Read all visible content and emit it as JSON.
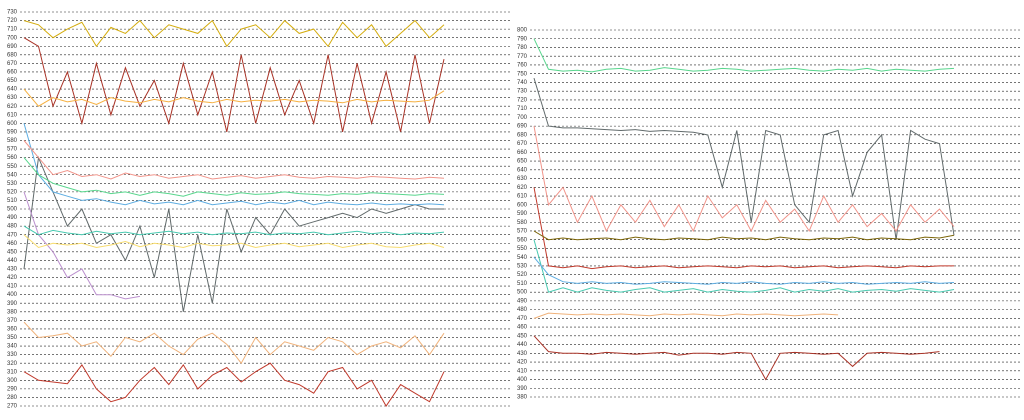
{
  "chart_data": [
    {
      "type": "line",
      "grid": true,
      "categories": [
        null,
        null,
        null,
        null,
        null,
        null,
        null,
        null,
        null,
        null,
        null,
        null,
        null,
        null,
        null,
        null,
        null,
        null,
        null,
        null,
        null,
        null,
        null,
        null,
        null,
        null,
        null,
        null,
        null,
        null
      ],
      "ylim": [
        270,
        730
      ],
      "yticks": [
        270,
        280,
        290,
        300,
        310,
        320,
        330,
        340,
        350,
        360,
        370,
        380,
        390,
        400,
        410,
        420,
        430,
        440,
        450,
        460,
        470,
        480,
        490,
        500,
        510,
        520,
        530,
        540,
        550,
        560,
        570,
        580,
        590,
        600,
        610,
        620,
        630,
        640,
        650,
        660,
        670,
        680,
        690,
        700,
        710,
        720,
        730
      ],
      "series": [
        {
          "color": "#c0392b",
          "values": [
            310,
            300,
            298,
            296,
            318,
            290,
            275,
            280,
            300,
            315,
            295,
            318,
            290,
            306,
            315,
            298,
            310,
            320,
            300,
            295,
            285,
            310,
            315,
            290,
            300,
            270,
            295,
            285,
            275,
            310
          ]
        },
        {
          "color": "#f0b27a",
          "values": [
            368,
            350,
            352,
            355,
            340,
            345,
            328,
            350,
            345,
            355,
            340,
            330,
            348,
            355,
            342,
            320,
            350,
            330,
            345,
            340,
            335,
            350,
            345,
            330,
            340,
            345,
            338,
            352,
            330,
            355
          ]
        },
        {
          "color": "#d4ac0d",
          "values": [
            720,
            715,
            700,
            710,
            718,
            690,
            712,
            705,
            720,
            700,
            715,
            710,
            705,
            720,
            690,
            710,
            715,
            700,
            720,
            705,
            710,
            690,
            718,
            700,
            715,
            690,
            705,
            720,
            700,
            715
          ]
        },
        {
          "color": "#a93226",
          "values": [
            700,
            690,
            620,
            660,
            600,
            670,
            610,
            665,
            620,
            650,
            600,
            670,
            610,
            660,
            590,
            680,
            600,
            665,
            610,
            650,
            600,
            680,
            590,
            670,
            600,
            660,
            590,
            680,
            600,
            675
          ]
        },
        {
          "color": "#616a6b",
          "values": [
            430,
            560,
            520,
            480,
            500,
            460,
            470,
            440,
            480,
            420,
            500,
            380,
            470,
            390,
            500,
            450,
            490,
            470,
            500,
            480,
            485,
            490,
            495,
            490,
            500,
            495,
            500,
            505,
            500,
            500
          ]
        },
        {
          "color": "#bb8fce",
          "values": [
            520,
            470,
            450,
            420,
            430,
            400,
            400,
            395,
            398,
            null,
            null,
            null,
            null,
            null,
            null,
            null,
            null,
            null,
            null,
            null,
            null,
            null,
            null,
            null,
            null,
            null,
            null,
            null,
            null,
            null
          ]
        },
        {
          "color": "#5dade2",
          "values": [
            600,
            540,
            520,
            515,
            510,
            512,
            508,
            505,
            510,
            506,
            508,
            505,
            510,
            505,
            507,
            509,
            505,
            508,
            506,
            510,
            505,
            508,
            506,
            505,
            507,
            505,
            506,
            505,
            506,
            505
          ]
        },
        {
          "color": "#58d68d",
          "values": [
            560,
            540,
            530,
            525,
            520,
            522,
            518,
            520,
            516,
            520,
            518,
            515,
            520,
            518,
            516,
            519,
            517,
            518,
            520,
            518,
            517,
            516,
            518,
            517,
            519,
            518,
            517,
            516,
            518,
            517
          ]
        },
        {
          "color": "#f1948a",
          "values": [
            580,
            560,
            540,
            545,
            538,
            540,
            535,
            542,
            538,
            540,
            536,
            538,
            540,
            535,
            537,
            539,
            536,
            538,
            540,
            537,
            536,
            538,
            537,
            536,
            538,
            537,
            536,
            535,
            537,
            536
          ]
        },
        {
          "color": "#f5b041",
          "values": [
            640,
            620,
            630,
            625,
            628,
            622,
            630,
            626,
            624,
            628,
            625,
            630,
            626,
            624,
            628,
            625,
            627,
            626,
            628,
            625,
            627,
            626,
            624,
            628,
            625,
            627,
            626,
            625,
            627,
            638
          ]
        },
        {
          "color": "#48c9b0",
          "values": [
            480,
            470,
            475,
            472,
            470,
            474,
            471,
            473,
            470,
            472,
            474,
            471,
            473,
            470,
            472,
            471,
            473,
            470,
            472,
            471,
            473,
            470,
            472,
            474,
            471,
            473,
            470,
            472,
            471,
            473
          ]
        },
        {
          "color": "#f7dc6f",
          "values": [
            470,
            455,
            460,
            458,
            460,
            455,
            458,
            462,
            456,
            460,
            458,
            455,
            460,
            457,
            458,
            460,
            455,
            458,
            460,
            456,
            458,
            460,
            455,
            458,
            460,
            456,
            455,
            458,
            460,
            455
          ]
        }
      ]
    },
    {
      "type": "line",
      "grid": true,
      "categories": [
        null,
        null,
        null,
        null,
        null,
        null,
        null,
        null,
        null,
        null,
        null,
        null,
        null,
        null,
        null,
        null,
        null,
        null,
        null,
        null,
        null,
        null,
        null,
        null,
        null,
        null,
        null,
        null,
        null,
        null
      ],
      "ylim": [
        380,
        800
      ],
      "yticks": [
        380,
        390,
        400,
        410,
        420,
        430,
        440,
        450,
        460,
        470,
        480,
        490,
        500,
        510,
        520,
        530,
        540,
        550,
        560,
        570,
        580,
        590,
        600,
        610,
        620,
        630,
        640,
        650,
        660,
        670,
        680,
        690,
        700,
        710,
        720,
        730,
        740,
        750,
        760,
        770,
        780,
        790,
        800
      ],
      "series": [
        {
          "color": "#58d68d",
          "values": [
            790,
            755,
            753,
            754,
            752,
            755,
            756,
            753,
            754,
            757,
            755,
            753,
            754,
            756,
            755,
            753,
            754,
            755,
            756,
            754,
            753,
            755,
            754,
            756,
            753,
            755,
            754,
            753,
            755,
            756
          ]
        },
        {
          "color": "#616a6b",
          "values": [
            745,
            690,
            688,
            688,
            687,
            686,
            685,
            686,
            684,
            685,
            684,
            683,
            680,
            620,
            685,
            580,
            685,
            680,
            600,
            580,
            680,
            685,
            610,
            660,
            680,
            560,
            685,
            675,
            670,
            565
          ]
        },
        {
          "color": "#f1948a",
          "values": [
            690,
            600,
            620,
            580,
            610,
            570,
            600,
            580,
            605,
            575,
            600,
            570,
            610,
            585,
            600,
            570,
            605,
            580,
            595,
            570,
            610,
            580,
            600,
            575,
            590,
            570,
            600,
            580,
            595,
            575
          ]
        },
        {
          "color": "#c0392b",
          "values": [
            620,
            530,
            528,
            530,
            527,
            529,
            530,
            528,
            529,
            530,
            528,
            529,
            530,
            529,
            528,
            530,
            529,
            530,
            528,
            529,
            530,
            528,
            529,
            530,
            529,
            528,
            530,
            529,
            530,
            530
          ]
        },
        {
          "color": "#a93226",
          "values": [
            450,
            432,
            430,
            430,
            429,
            431,
            430,
            429,
            430,
            431,
            428,
            430,
            430,
            429,
            431,
            430,
            400,
            430,
            431,
            430,
            429,
            430,
            415,
            430,
            431,
            430,
            429,
            430,
            432,
            null
          ]
        },
        {
          "color": "#f0b27a",
          "values": [
            470,
            476,
            475,
            474,
            475,
            474,
            475,
            474,
            473,
            475,
            474,
            475,
            474,
            473,
            475,
            474,
            475,
            474,
            473,
            474,
            475,
            474,
            null,
            null,
            null,
            null,
            null,
            null,
            null,
            null
          ]
        },
        {
          "color": "#48c9b0",
          "values": [
            560,
            500,
            505,
            500,
            505,
            502,
            500,
            503,
            505,
            500,
            502,
            504,
            500,
            503,
            501,
            500,
            502,
            505,
            500,
            503,
            501,
            504,
            500,
            502,
            503,
            501,
            504,
            502,
            500,
            503
          ]
        },
        {
          "color": "#7d6608",
          "values": [
            570,
            560,
            562,
            560,
            561,
            562,
            560,
            563,
            561,
            560,
            562,
            561,
            560,
            563,
            561,
            562,
            560,
            563,
            561,
            560,
            562,
            561,
            563,
            560,
            562,
            561,
            560,
            563,
            562,
            565
          ]
        },
        {
          "color": "#5dade2",
          "values": [
            540,
            520,
            512,
            510,
            512,
            510,
            511,
            509,
            510,
            512,
            511,
            510,
            509,
            511,
            510,
            512,
            510,
            509,
            511,
            510,
            512,
            510,
            511,
            509,
            510,
            511,
            510,
            512,
            510,
            511
          ]
        }
      ]
    }
  ]
}
